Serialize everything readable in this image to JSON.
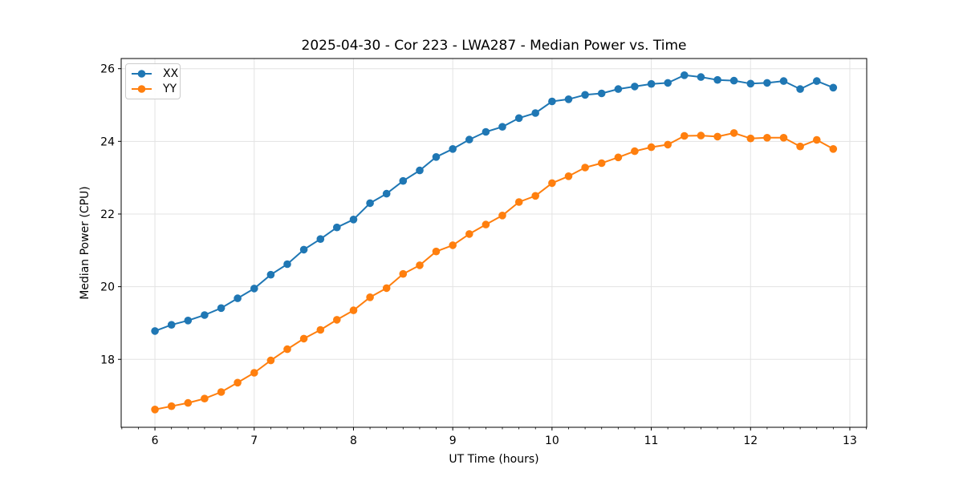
{
  "chart_data": {
    "type": "line",
    "title": "2025-04-30 - Cor 223 - LWA287 - Median Power vs. Time",
    "xlabel": "UT Time (hours)",
    "ylabel": "Median Power (CPU)",
    "xlim": [
      5.66,
      13.17
    ],
    "ylim": [
      16.13,
      26.28
    ],
    "x_ticks": [
      6,
      7,
      8,
      9,
      10,
      11,
      12,
      13
    ],
    "y_ticks": [
      18,
      20,
      22,
      24,
      26
    ],
    "x_minor_tick_step": 0.1667,
    "grid": true,
    "grid_color": "#e3e3e3",
    "legend_position": "upper-left",
    "x": [
      6.0,
      6.167,
      6.333,
      6.5,
      6.667,
      6.833,
      7.0,
      7.167,
      7.333,
      7.5,
      7.667,
      7.833,
      8.0,
      8.167,
      8.333,
      8.5,
      8.667,
      8.833,
      9.0,
      9.167,
      9.333,
      9.5,
      9.667,
      9.833,
      10.0,
      10.167,
      10.333,
      10.5,
      10.667,
      10.833,
      11.0,
      11.167,
      11.333,
      11.5,
      11.667,
      11.833,
      12.0,
      12.167,
      12.333,
      12.5,
      12.667,
      12.833
    ],
    "series": [
      {
        "name": "XX",
        "color": "#1f77b4",
        "values": [
          18.78,
          18.95,
          19.07,
          19.22,
          19.41,
          19.68,
          19.95,
          20.33,
          20.62,
          21.02,
          21.31,
          21.63,
          21.85,
          22.3,
          22.56,
          22.91,
          23.2,
          23.57,
          23.79,
          24.05,
          24.26,
          24.4,
          24.64,
          24.78,
          25.1,
          25.16,
          25.28,
          25.32,
          25.44,
          25.51,
          25.58,
          25.61,
          25.82,
          25.77,
          25.69,
          25.67,
          25.59,
          25.61,
          25.66,
          25.44,
          25.66,
          25.48
        ]
      },
      {
        "name": "YY",
        "color": "#ff7f0e",
        "values": [
          16.62,
          16.71,
          16.8,
          16.92,
          17.1,
          17.36,
          17.63,
          17.97,
          18.28,
          18.57,
          18.81,
          19.09,
          19.35,
          19.71,
          19.96,
          20.35,
          20.59,
          20.97,
          21.14,
          21.45,
          21.71,
          21.96,
          22.33,
          22.5,
          22.85,
          23.04,
          23.28,
          23.4,
          23.56,
          23.73,
          23.84,
          23.91,
          24.15,
          24.16,
          24.13,
          24.23,
          24.08,
          24.1,
          24.1,
          23.86,
          24.04,
          23.79
        ]
      }
    ]
  }
}
